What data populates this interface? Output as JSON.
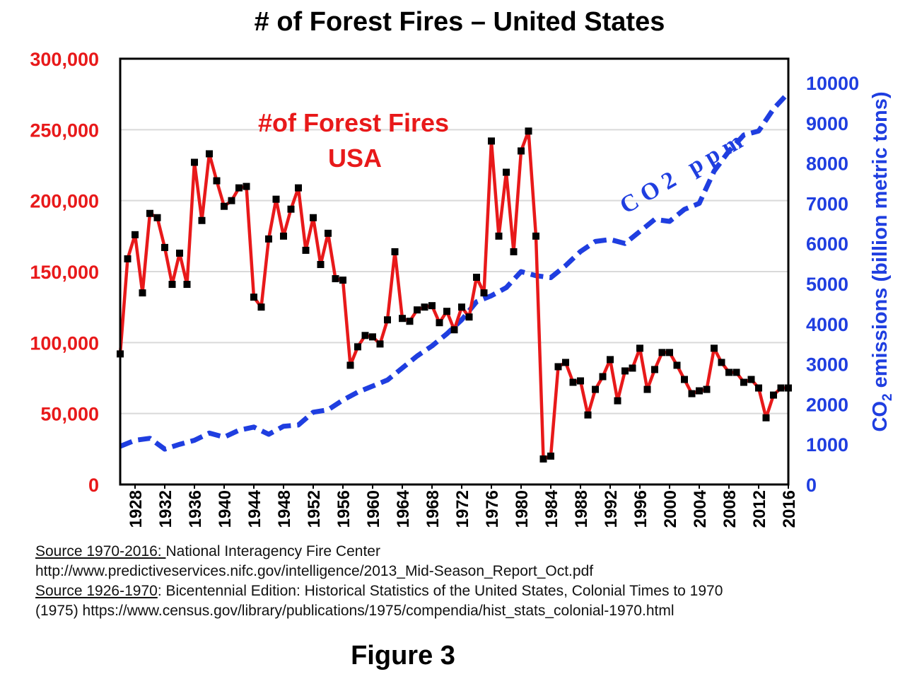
{
  "chart_data": {
    "type": "line",
    "title": "# of Forest Fires – United States",
    "colors": {
      "fires": "#e8191a",
      "markers": "#000000",
      "co2": "#1f3ee0",
      "left_axis_text": "#e8191a",
      "right_axis_text": "#1f3ee0",
      "gridline": "#d9d9d9"
    },
    "annotations": {
      "fires_label_line1": "#of Forest Fires",
      "fires_label_line2": "USA",
      "co2_label": "C O 2   p p m"
    },
    "left_axis": {
      "ylim": [
        0,
        300000
      ],
      "ticks": [
        "0",
        "50,000",
        "100,000",
        "150,000",
        "200,000",
        "250,000",
        "300,000"
      ]
    },
    "right_axis": {
      "label": "CO2 emissions (billion metric tons)",
      "label_main": "CO",
      "label_sub": "2",
      "label_rest": " emissions (billion metric tons)",
      "ylim": [
        0,
        10600
      ],
      "ticks": [
        "0",
        "1000",
        "2000",
        "3000",
        "4000",
        "5000",
        "6000",
        "7000",
        "8000",
        "9000",
        "10000"
      ]
    },
    "x_axis": {
      "xlim": [
        1926,
        2016
      ],
      "ticks": [
        "1928",
        "1932",
        "1936",
        "1940",
        "1944",
        "1948",
        "1952",
        "1956",
        "1960",
        "1964",
        "1968",
        "1972",
        "1976",
        "1980",
        "1984",
        "1988",
        "1992",
        "1996",
        "2000",
        "2004",
        "2008",
        "2012",
        "2016"
      ]
    },
    "grid": true,
    "series": [
      {
        "key": "fires",
        "years": [
          1926,
          1927,
          1928,
          1929,
          1930,
          1931,
          1932,
          1933,
          1934,
          1935,
          1936,
          1937,
          1938,
          1939,
          1940,
          1941,
          1942,
          1943,
          1944,
          1945,
          1946,
          1947,
          1948,
          1949,
          1950,
          1951,
          1952,
          1953,
          1954,
          1955,
          1956,
          1957,
          1958,
          1959,
          1960,
          1961,
          1962,
          1963,
          1964,
          1965,
          1966,
          1967,
          1968,
          1969,
          1970,
          1971,
          1972,
          1973,
          1974,
          1975,
          1976,
          1977,
          1978,
          1979,
          1980,
          1981,
          1982,
          1983,
          1984,
          1985,
          1986,
          1987,
          1988,
          1989,
          1990,
          1991,
          1992,
          1993,
          1994,
          1995,
          1996,
          1997,
          1998,
          1999,
          2000,
          2001,
          2002,
          2003,
          2004,
          2005,
          2006,
          2007,
          2008,
          2009,
          2010,
          2011,
          2012,
          2013,
          2014,
          2015,
          2016
        ],
        "values": [
          92000,
          159000,
          176000,
          135000,
          191000,
          188000,
          167000,
          141000,
          163000,
          141000,
          227000,
          186000,
          233000,
          214000,
          196000,
          200000,
          209000,
          210000,
          132000,
          125000,
          173000,
          201000,
          175000,
          194000,
          209000,
          165000,
          188000,
          155000,
          177000,
          145000,
          144000,
          84000,
          97000,
          105000,
          104000,
          99000,
          116000,
          164000,
          117000,
          115000,
          123000,
          125000,
          126000,
          114000,
          122000,
          109000,
          125000,
          118000,
          146000,
          135000,
          242000,
          175000,
          220000,
          164000,
          235000,
          249000,
          175000,
          18000,
          20000,
          83000,
          86000,
          72000,
          73000,
          49000,
          67000,
          76000,
          88000,
          59000,
          80000,
          82000,
          96000,
          67000,
          81000,
          93000,
          93000,
          84000,
          74000,
          64000,
          66000,
          67000,
          96000,
          86000,
          79000,
          79000,
          72000,
          74000,
          68000,
          47000,
          63000,
          68000,
          68000
        ]
      },
      {
        "key": "co2",
        "years": [
          1926,
          1928,
          1930,
          1932,
          1934,
          1936,
          1938,
          1940,
          1942,
          1944,
          1946,
          1948,
          1950,
          1952,
          1954,
          1956,
          1958,
          1960,
          1962,
          1964,
          1966,
          1968,
          1970,
          1972,
          1974,
          1976,
          1978,
          1980,
          1982,
          1984,
          1986,
          1988,
          1990,
          1992,
          1994,
          1996,
          1998,
          2000,
          2002,
          2004,
          2006,
          2008,
          2010,
          2012,
          2014,
          2016
        ],
        "values": [
          950,
          1100,
          1150,
          880,
          1000,
          1100,
          1280,
          1180,
          1350,
          1430,
          1250,
          1450,
          1480,
          1800,
          1860,
          2100,
          2300,
          2450,
          2600,
          2900,
          3200,
          3450,
          3750,
          4100,
          4550,
          4700,
          4900,
          5300,
          5200,
          5150,
          5450,
          5800,
          6050,
          6100,
          6000,
          6300,
          6600,
          6550,
          6850,
          7000,
          7800,
          8300,
          8700,
          8800,
          9350,
          9750
        ]
      }
    ],
    "sources": {
      "line1_label": "Source 1970-2016: ",
      "line1_text": "National Interagency Fire Center",
      "line2": "http://www.predictiveservices.nifc.gov/intelligence/2013_Mid-Season_Report_Oct.pdf",
      "line3_label": "Source 1926-1970",
      "line3_text": ": Bicentennial Edition: Historical Statistics of the United States, Colonial Times to 1970",
      "line4": "(1975) https://www.census.gov/library/publications/1975/compendia/hist_stats_colonial-1970.html"
    },
    "figure_label": "Figure 3"
  }
}
